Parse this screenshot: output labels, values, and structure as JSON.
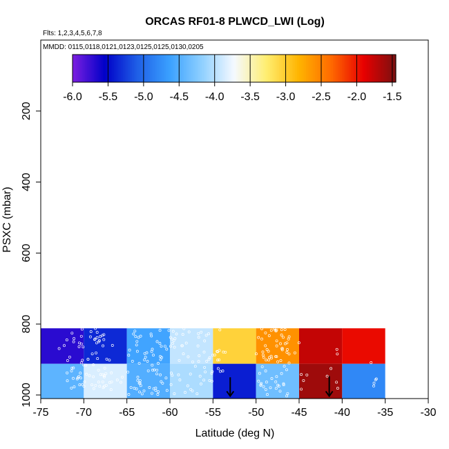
{
  "chart_data": {
    "type": "heatmap",
    "title": "ORCAS RF01-8 PLWCD_LWI (Log)",
    "flights_note": "Flts: 1,2,3,4,5,6,7,8",
    "dates_note": "MMDD: 0115,0118,0121,0123,0125,0125,0130,0205",
    "xlabel": "Latitude (deg N)",
    "ylabel": "PSXC (mbar)",
    "xlim": [
      -75,
      -30
    ],
    "ylim": [
      1010,
      0
    ],
    "x_ticks": [
      -75,
      -70,
      -65,
      -60,
      -55,
      -50,
      -45,
      -40,
      -35,
      -30
    ],
    "y_ticks": [
      200,
      400,
      600,
      800,
      1000
    ],
    "colorbar": {
      "min": -6.0,
      "max": -1.45,
      "ticks": [
        -6.0,
        -5.5,
        -5.0,
        -4.5,
        -4.0,
        -3.5,
        -3.0,
        -2.5,
        -2.0,
        -1.5
      ],
      "tick_labels": [
        "-6.0",
        "-5.5",
        "-5.0",
        "-4.5",
        "-4.0",
        "-3.5",
        "-3.0",
        "-2.5",
        "-2.0",
        "-1.5"
      ],
      "colors": [
        "#7c1fe0",
        "#0000c8",
        "#1f5fe6",
        "#3aa0ff",
        "#8fd0ff",
        "#f5f9ff",
        "#ffee70",
        "#ffb400",
        "#ff6a00",
        "#e80000",
        "#7a1010"
      ]
    },
    "cells": [
      {
        "lat": [
          -75,
          -70
        ],
        "p": [
          812,
          912
        ],
        "value": -5.7
      },
      {
        "lat": [
          -70,
          -65
        ],
        "p": [
          812,
          912
        ],
        "value": -5.35
      },
      {
        "lat": [
          -65,
          -60
        ],
        "p": [
          812,
          912
        ],
        "value": -4.6
      },
      {
        "lat": [
          -60,
          -55
        ],
        "p": [
          812,
          912
        ],
        "value": -3.95
      },
      {
        "lat": [
          -55,
          -50
        ],
        "p": [
          812,
          912
        ],
        "value": -3.05
      },
      {
        "lat": [
          -50,
          -45
        ],
        "p": [
          812,
          912
        ],
        "value": -2.6
      },
      {
        "lat": [
          -45,
          -40
        ],
        "p": [
          812,
          912
        ],
        "value": -1.75
      },
      {
        "lat": [
          -40,
          -35
        ],
        "p": [
          812,
          912
        ],
        "value": -1.95
      },
      {
        "lat": [
          -75,
          -70
        ],
        "p": [
          912,
          1010
        ],
        "value": -4.45
      },
      {
        "lat": [
          -70,
          -65
        ],
        "p": [
          912,
          1010
        ],
        "value": -3.85
      },
      {
        "lat": [
          -65,
          -60
        ],
        "p": [
          912,
          1010
        ],
        "value": -4.5
      },
      {
        "lat": [
          -60,
          -55
        ],
        "p": [
          912,
          1010
        ],
        "value": -4.05
      },
      {
        "lat": [
          -55,
          -50
        ],
        "p": [
          912,
          1010
        ],
        "value": -5.4
      },
      {
        "lat": [
          -50,
          -45
        ],
        "p": [
          912,
          1010
        ],
        "value": -4.35
      },
      {
        "lat": [
          -45,
          -40
        ],
        "p": [
          912,
          1010
        ],
        "value": -1.6
      },
      {
        "lat": [
          -40,
          -35
        ],
        "p": [
          912,
          1010
        ],
        "value": -4.8
      }
    ],
    "arrows": [
      {
        "lat": -53.0,
        "p_from": 950,
        "p_to": 1003
      },
      {
        "lat": -41.5,
        "p_from": 947,
        "p_to": 1003
      }
    ],
    "obs_regions": [
      {
        "lat": [
          -73,
          -66.5
        ],
        "p": [
          812,
          915
        ],
        "n": 40
      },
      {
        "lat": [
          -72,
          -65.5
        ],
        "p": [
          915,
          985
        ],
        "n": 45
      },
      {
        "lat": [
          -65,
          -60
        ],
        "p": [
          812,
          1000
        ],
        "n": 65
      },
      {
        "lat": [
          -60,
          -55
        ],
        "p": [
          812,
          1000
        ],
        "n": 55
      },
      {
        "lat": [
          -55,
          -53.5
        ],
        "p": [
          812,
          950
        ],
        "n": 12
      },
      {
        "lat": [
          -50,
          -46
        ],
        "p": [
          812,
          1003
        ],
        "n": 70
      },
      {
        "lat": [
          -45.5,
          -44
        ],
        "p": [
          835,
          985
        ],
        "n": 6
      },
      {
        "lat": [
          -42,
          -40.5
        ],
        "p": [
          870,
          985
        ],
        "n": 6
      },
      {
        "lat": [
          -37,
          -36
        ],
        "p": [
          870,
          1003
        ],
        "n": 5
      }
    ]
  }
}
